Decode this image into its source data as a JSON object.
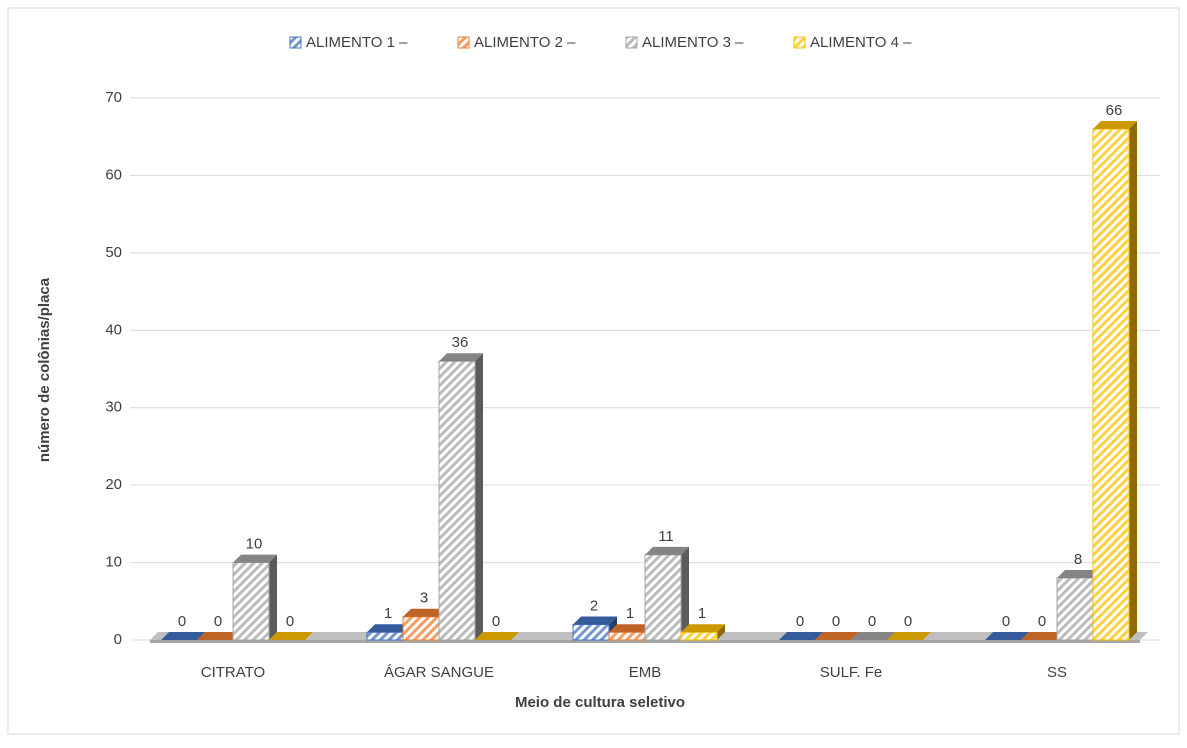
{
  "chart_data": {
    "type": "bar",
    "x_label": "Meio de cultura seletivo",
    "y_label": "número de colônias/placa",
    "categories": [
      "CITRATO",
      "ÁGAR SANGUE",
      "EMB",
      "SULF. Fe",
      "SS"
    ],
    "series": [
      {
        "name": "ALIMENTO 1 –",
        "color": "#4472c4",
        "values": [
          0,
          1,
          2,
          0,
          0
        ]
      },
      {
        "name": "ALIMENTO 2 –",
        "color": "#ed7d31",
        "values": [
          0,
          3,
          1,
          0,
          0
        ]
      },
      {
        "name": "ALIMENTO 3 –",
        "color": "#a5a5a5",
        "values": [
          10,
          36,
          11,
          0,
          8
        ]
      },
      {
        "name": "ALIMENTO 4 –",
        "color": "#ffc000",
        "values": [
          0,
          0,
          1,
          0,
          66
        ]
      }
    ],
    "ylim": [
      0,
      70
    ],
    "yticks": [
      0,
      10,
      20,
      30,
      40,
      50,
      60,
      70
    ],
    "grid": true,
    "legend": "top"
  }
}
